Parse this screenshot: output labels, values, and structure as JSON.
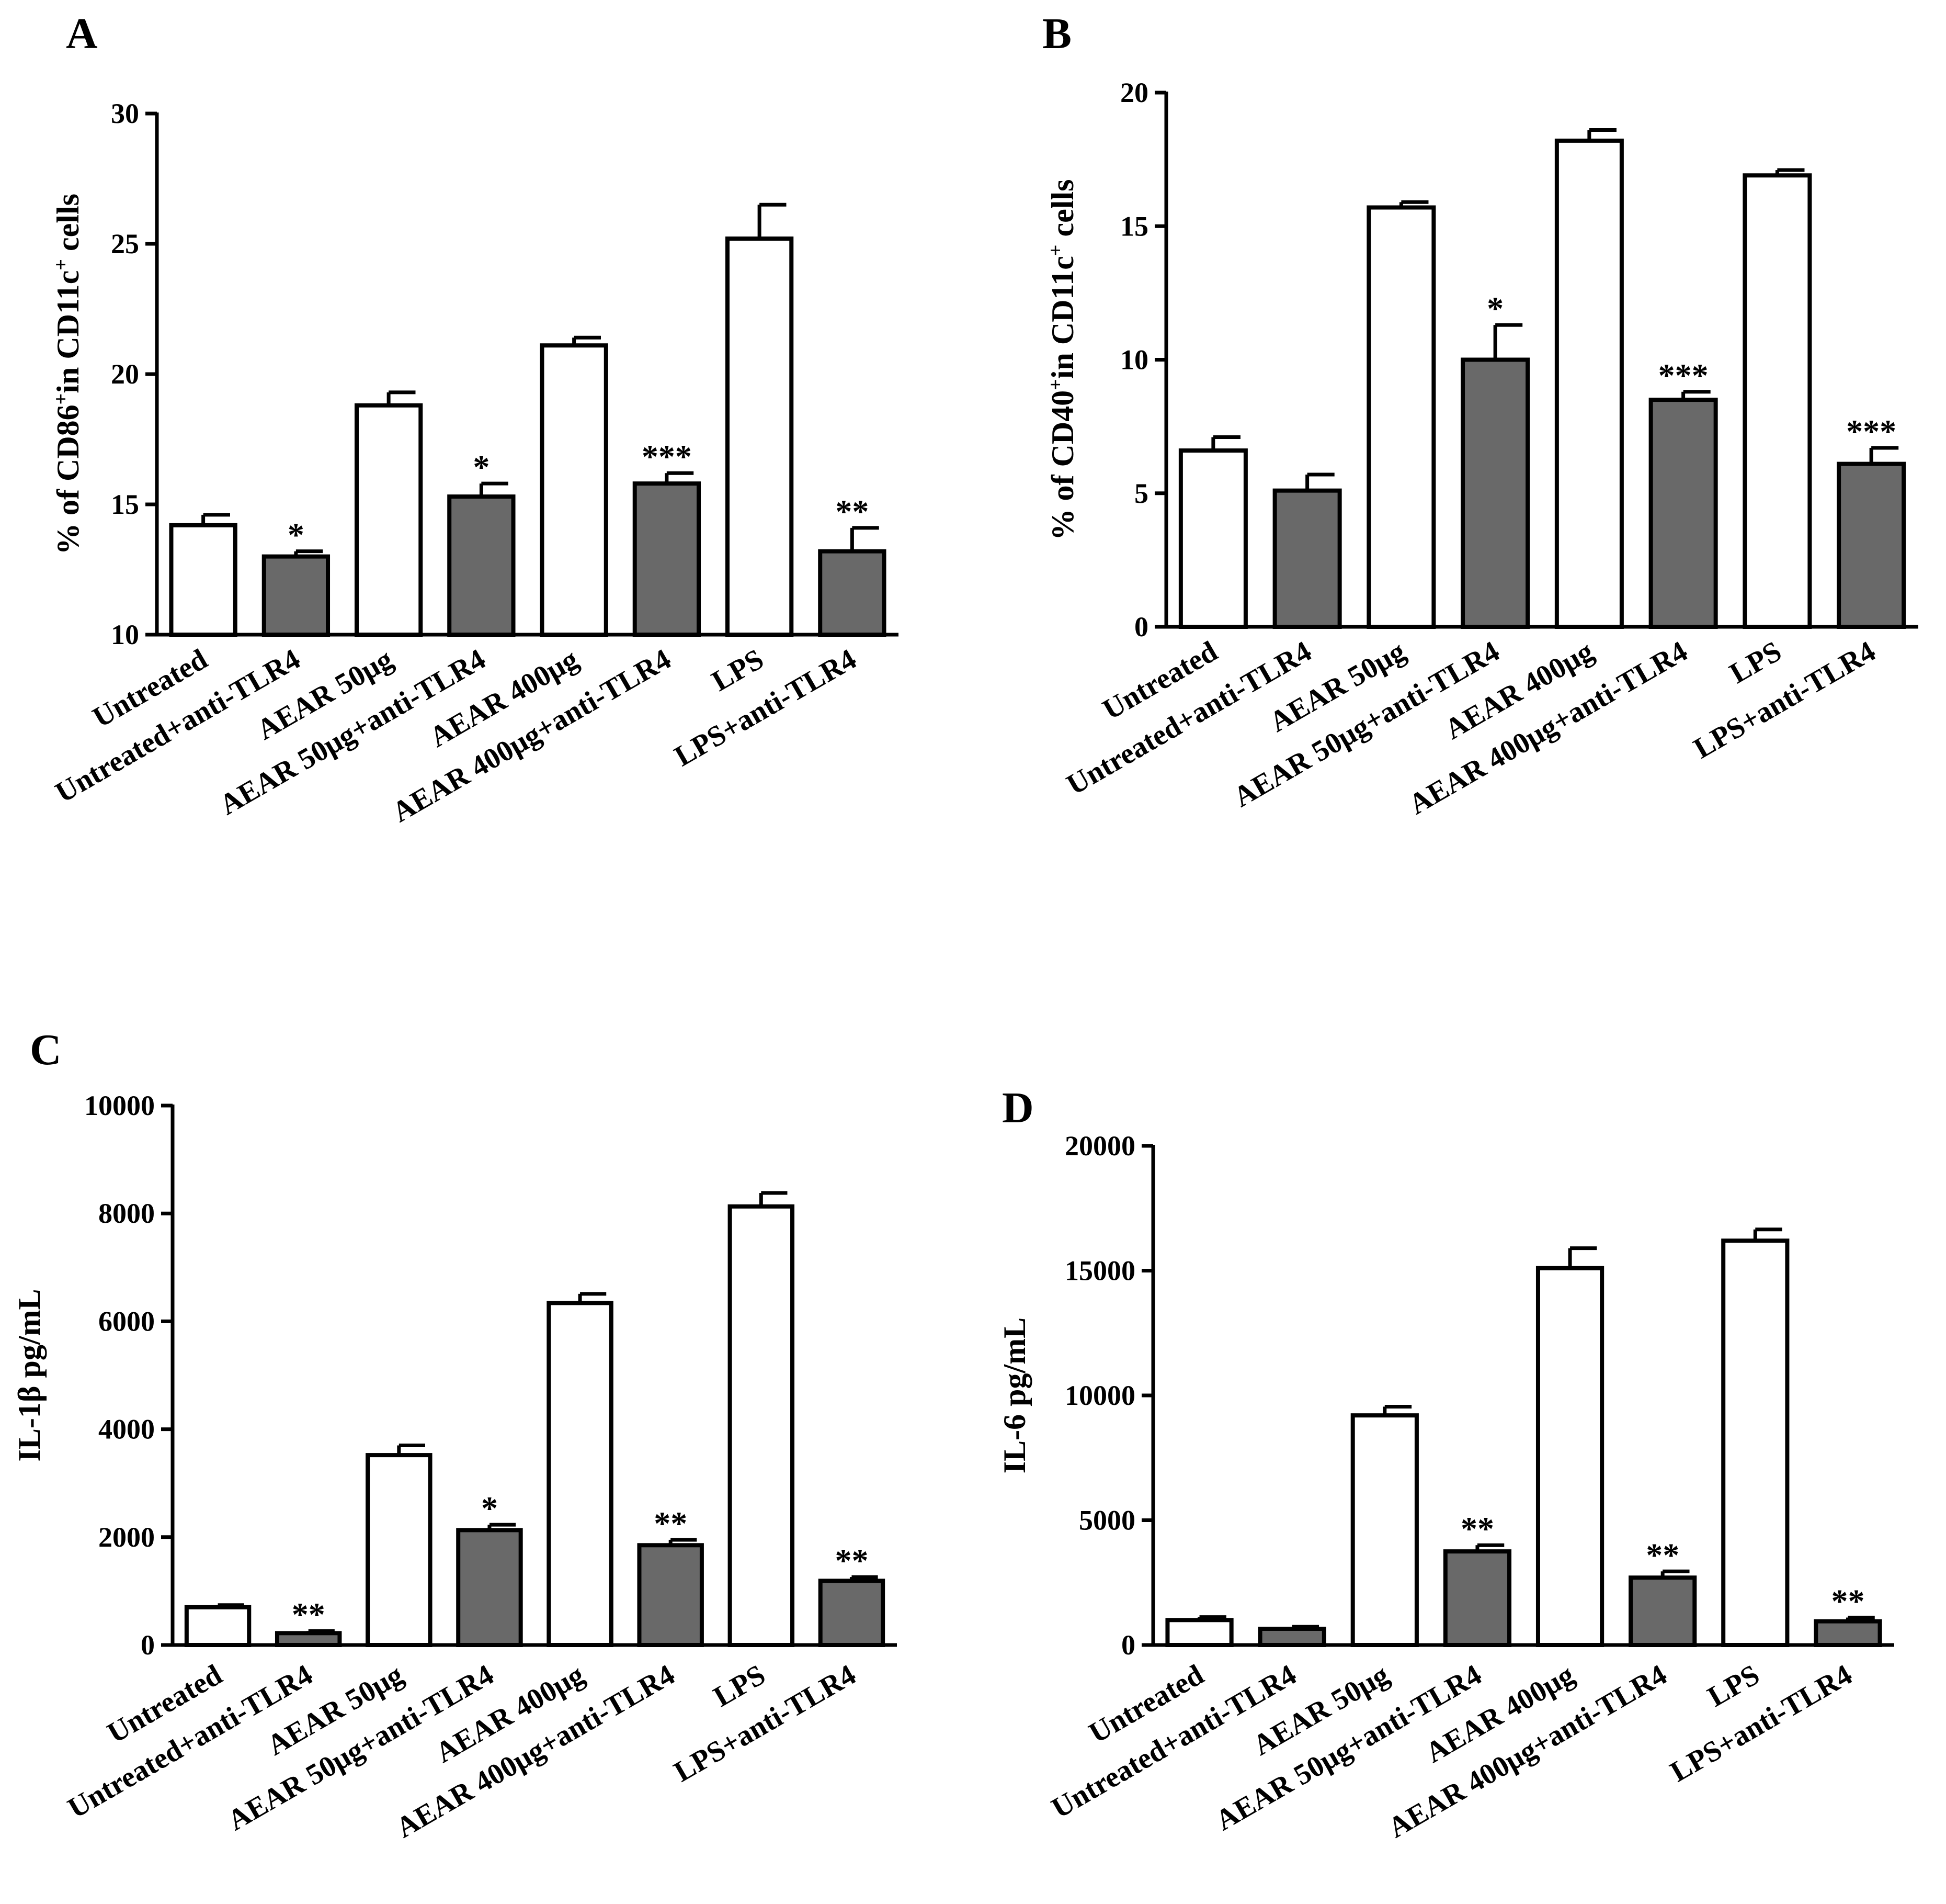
{
  "colors": {
    "open_fill": "#ffffff",
    "filled_fill": "#696969",
    "stroke": "#000000"
  },
  "chart_data": [
    {
      "panel": "A",
      "type": "bar",
      "ylabel_pre": "% of CD86",
      "ylabel_sup1": "+",
      "ylabel_mid": "in CD11c",
      "ylabel_sup2": "+",
      "ylabel_post": " cells",
      "ylim": [
        10,
        30
      ],
      "yticks": [
        "10",
        "15",
        "20",
        "25",
        "30"
      ],
      "categories": [
        "Untreated",
        "Untreated+anti-TLR4",
        "AEAR 50μg",
        "AEAR 50μg+anti-TLR4",
        "AEAR 400μg",
        "AEAR 400μg+anti-TLR4",
        "LPS",
        "LPS+anti-TLR4"
      ],
      "values": [
        14.2,
        13.0,
        18.8,
        15.3,
        21.1,
        15.8,
        25.2,
        13.2
      ],
      "errors": [
        0.4,
        0.2,
        0.5,
        0.5,
        0.3,
        0.4,
        1.3,
        0.9
      ],
      "fills": [
        "open",
        "filled",
        "open",
        "filled",
        "open",
        "filled",
        "open",
        "filled"
      ],
      "significance": [
        "",
        "*",
        "",
        "*",
        "",
        "***",
        "",
        "**"
      ]
    },
    {
      "panel": "B",
      "type": "bar",
      "ylabel_pre": "% of CD40",
      "ylabel_sup1": "+",
      "ylabel_mid": "in CD11c",
      "ylabel_sup2": "+",
      "ylabel_post": " cells",
      "ylim": [
        0,
        20
      ],
      "yticks": [
        "0",
        "5",
        "10",
        "15",
        "20"
      ],
      "categories": [
        "Untreated",
        "Untreated+anti-TLR4",
        "AEAR 50μg",
        "AEAR 50μg+anti-TLR4",
        "AEAR 400μg",
        "AEAR 400μg+anti-TLR4",
        "LPS",
        "LPS+anti-TLR4"
      ],
      "values": [
        6.6,
        5.1,
        15.7,
        10.0,
        18.2,
        8.5,
        16.9,
        6.1
      ],
      "errors": [
        0.5,
        0.6,
        0.2,
        1.3,
        0.4,
        0.3,
        0.2,
        0.6
      ],
      "fills": [
        "open",
        "filled",
        "open",
        "filled",
        "open",
        "filled",
        "open",
        "filled"
      ],
      "significance": [
        "",
        "",
        "",
        "*",
        "",
        "***",
        "",
        "***"
      ]
    },
    {
      "panel": "C",
      "type": "bar",
      "ylabel": "IL-1β pg/mL",
      "ylim": [
        0,
        10000
      ],
      "yticks": [
        "0",
        "2000",
        "4000",
        "6000",
        "8000",
        "10000"
      ],
      "categories": [
        "Untreated",
        "Untreated+anti-TLR4",
        "AEAR 50μg",
        "AEAR 50μg+anti-TLR4",
        "AEAR 400μg",
        "AEAR 400μg+anti-TLR4",
        "LPS",
        "LPS+anti-TLR4"
      ],
      "values": [
        700,
        220,
        3520,
        2130,
        6340,
        1850,
        8130,
        1190
      ],
      "errors": [
        40,
        40,
        180,
        100,
        170,
        100,
        250,
        70
      ],
      "fills": [
        "open",
        "filled",
        "open",
        "filled",
        "open",
        "filled",
        "open",
        "filled"
      ],
      "significance": [
        "",
        "**",
        "",
        "*",
        "",
        "**",
        "",
        "**"
      ]
    },
    {
      "panel": "D",
      "type": "bar",
      "ylabel": "IL-6 pg/mL",
      "ylim": [
        0,
        20000
      ],
      "yticks": [
        "0",
        "5000",
        "10000",
        "15000",
        "20000"
      ],
      "categories": [
        "Untreated",
        "Untreated+anti-TLR4",
        "AEAR 50μg",
        "AEAR 50μg+anti-TLR4",
        "AEAR 400μg",
        "AEAR 400μg+anti-TLR4",
        "LPS",
        "LPS+anti-TLR4"
      ],
      "values": [
        1000,
        650,
        9200,
        3750,
        15100,
        2700,
        16200,
        950
      ],
      "errors": [
        120,
        80,
        350,
        250,
        800,
        250,
        450,
        150
      ],
      "fills": [
        "open",
        "filled",
        "open",
        "filled",
        "open",
        "filled",
        "open",
        "filled"
      ],
      "significance": [
        "",
        "",
        "",
        "**",
        "",
        "**",
        "",
        "**"
      ]
    }
  ]
}
